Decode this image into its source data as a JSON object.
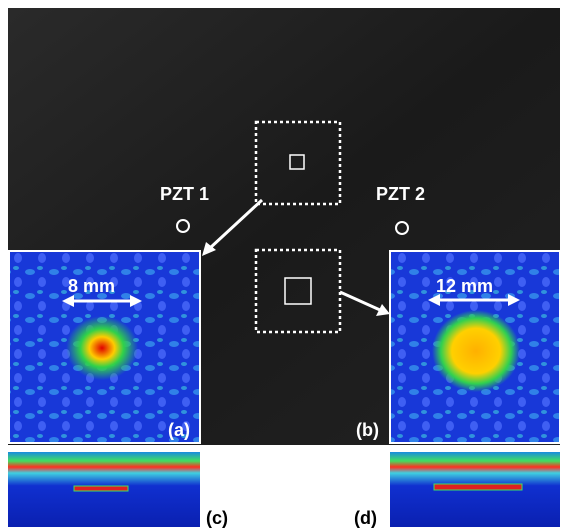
{
  "photo": {
    "sensors": [
      {
        "label": "PZT 1"
      },
      {
        "label": "PZT 2"
      }
    ]
  },
  "insets": [
    {
      "label": "(a)",
      "measurement": "8 mm"
    },
    {
      "label": "(b)",
      "measurement": "12 mm"
    }
  ],
  "strips": [
    {
      "label": "(c)"
    },
    {
      "label": "(d)"
    }
  ]
}
